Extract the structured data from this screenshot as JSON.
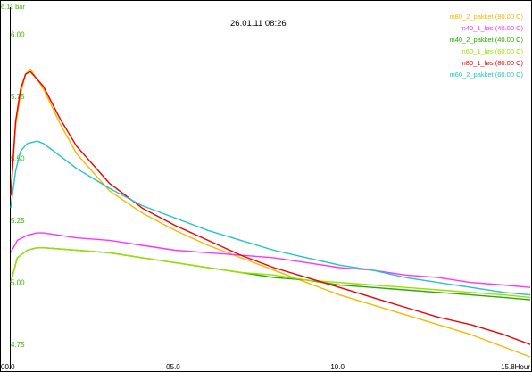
{
  "chart_data": {
    "type": "line",
    "timestamp": "26.01.11 08:26",
    "y_top_label": "6.11 bar",
    "yticks": [
      "6.00",
      "5.75",
      "5.50",
      "5.25",
      "5.00",
      "4.75"
    ],
    "y_tick_values": [
      6.0,
      5.75,
      5.5,
      5.25,
      5.0,
      4.75
    ],
    "xticks": [
      "00.0",
      "05.0",
      "10.0",
      "15.8Hour"
    ],
    "x_tick_values": [
      0,
      5,
      10,
      15.8
    ],
    "xlim": [
      0,
      15.8
    ],
    "ylim": [
      4.65,
      6.11
    ],
    "grid": false,
    "legend_position": "top-right",
    "series": [
      {
        "name": "m80_2_pakket (80.00 C)",
        "color": "#f5b800",
        "x": [
          0,
          0.15,
          0.3,
          0.45,
          0.6,
          1,
          1.5,
          2,
          3,
          4,
          5,
          6,
          7,
          8,
          9,
          10,
          11,
          12,
          13,
          14,
          15,
          15.8
        ],
        "y": [
          5.35,
          5.63,
          5.76,
          5.84,
          5.86,
          5.78,
          5.64,
          5.52,
          5.37,
          5.28,
          5.21,
          5.15,
          5.1,
          5.05,
          5.0,
          4.95,
          4.91,
          4.87,
          4.83,
          4.79,
          4.74,
          4.7
        ]
      },
      {
        "name": "m40_1_løs (40.00 C)",
        "color": "#ff33ff",
        "x": [
          0,
          0.2,
          0.5,
          0.8,
          1,
          2,
          3,
          4,
          5,
          6,
          7,
          8,
          9,
          10,
          11,
          12,
          13,
          14,
          15,
          15.8
        ],
        "y": [
          5.12,
          5.17,
          5.19,
          5.2,
          5.2,
          5.18,
          5.17,
          5.15,
          5.13,
          5.12,
          5.11,
          5.1,
          5.08,
          5.06,
          5.05,
          5.03,
          5.02,
          5.0,
          4.99,
          4.98
        ]
      },
      {
        "name": "m40_2_pakket (40.00 C)",
        "color": "#2aaa00",
        "x": [
          0,
          0.2,
          0.5,
          0.8,
          1,
          2,
          3,
          4,
          5,
          6,
          7,
          8,
          9,
          10,
          11,
          12,
          13,
          14,
          15,
          15.8
        ],
        "y": [
          5.0,
          5.1,
          5.13,
          5.14,
          5.14,
          5.13,
          5.12,
          5.1,
          5.08,
          5.06,
          5.04,
          5.02,
          5.01,
          4.99,
          4.98,
          4.97,
          4.96,
          4.95,
          4.94,
          4.93
        ]
      },
      {
        "name": "m60_1_løs (60.00 C)",
        "color": "#99e000",
        "x": [
          0,
          0.2,
          0.5,
          0.8,
          1,
          2,
          3,
          4,
          5,
          6,
          7,
          8,
          9,
          10,
          11,
          12,
          13,
          14,
          15,
          15.8
        ],
        "y": [
          5.0,
          5.1,
          5.13,
          5.14,
          5.14,
          5.13,
          5.12,
          5.1,
          5.08,
          5.06,
          5.04,
          5.03,
          5.01,
          5.0,
          4.99,
          4.98,
          4.97,
          4.96,
          4.95,
          4.94
        ]
      },
      {
        "name": "m80_1_løs (80.00 C)",
        "color": "#ee0000",
        "x": [
          0,
          0.15,
          0.3,
          0.45,
          0.6,
          1,
          1.5,
          2,
          3,
          4,
          5,
          6,
          7,
          8,
          9,
          10,
          11,
          12,
          13,
          14,
          15,
          15.8
        ],
        "y": [
          5.35,
          5.65,
          5.78,
          5.84,
          5.85,
          5.79,
          5.66,
          5.55,
          5.4,
          5.3,
          5.23,
          5.17,
          5.11,
          5.06,
          5.02,
          4.98,
          4.94,
          4.9,
          4.86,
          4.83,
          4.79,
          4.75
        ]
      },
      {
        "name": "m60_2_pakket (60.00 C)",
        "color": "#22c4c4",
        "x": [
          0,
          0.15,
          0.3,
          0.5,
          0.8,
          1,
          1.5,
          2,
          3,
          4,
          5,
          6,
          7,
          8,
          9,
          10,
          11,
          12,
          13,
          14,
          15,
          15.8
        ],
        "y": [
          5.3,
          5.45,
          5.53,
          5.56,
          5.57,
          5.56,
          5.51,
          5.46,
          5.38,
          5.31,
          5.26,
          5.21,
          5.17,
          5.13,
          5.1,
          5.07,
          5.05,
          5.02,
          5.0,
          4.98,
          4.96,
          4.95
        ]
      }
    ]
  }
}
